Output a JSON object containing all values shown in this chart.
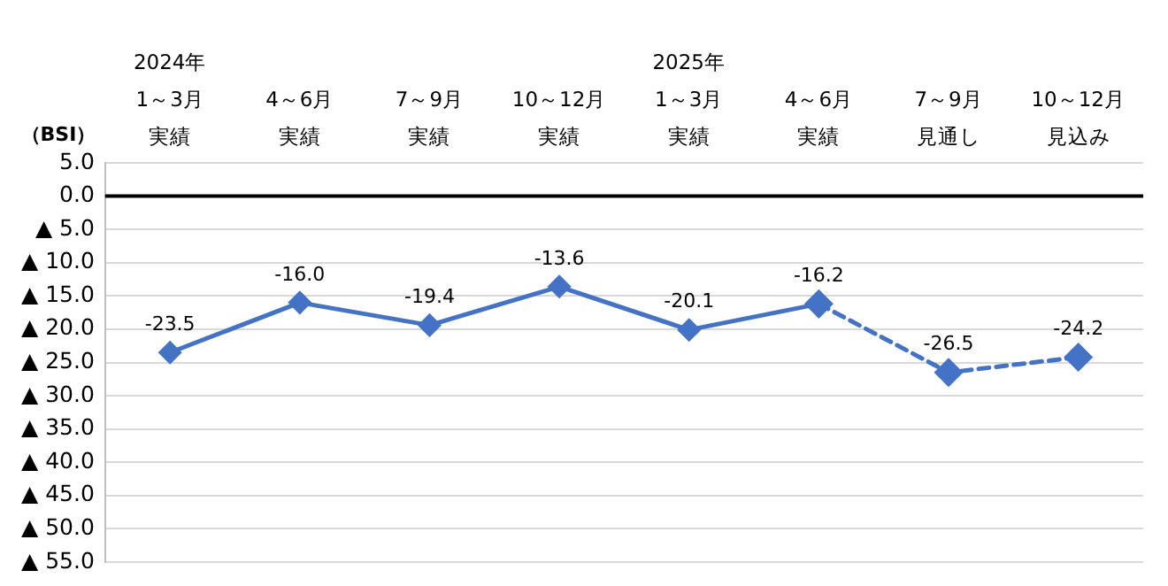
{
  "chart_data": {
    "type": "line",
    "ylabel": "（BSI）",
    "categories": [
      "2024年1～3月実績",
      "4～6月実績",
      "7～9月実績",
      "10～12月実績",
      "2025年1～3月実績",
      "4～6月実績",
      "7～9月見通し",
      "10～12月見込み"
    ],
    "series": [
      {
        "color": "#4472c4",
        "values": [
          -23.5,
          -16.0,
          -19.4,
          -13.6,
          -20.1,
          -16.2,
          null,
          null
        ],
        "value_labels": [
          "-23.5",
          "-16.0",
          "-19.4",
          "-13.6",
          "-20.1",
          "-16.2",
          null,
          null
        ],
        "line_style": "solid"
      },
      {
        "color": "#4472c4",
        "values": [
          null,
          null,
          null,
          null,
          null,
          -16.2,
          -26.5,
          -24.2
        ],
        "value_labels": [
          null,
          null,
          null,
          null,
          null,
          null,
          "-26.5",
          "-24.2"
        ],
        "line_style": "dashed"
      }
    ],
    "ylim": [
      -55,
      5
    ],
    "yticks": [
      {
        "value": 5,
        "label": "5.0"
      },
      {
        "value": 0,
        "label": "0.0"
      },
      {
        "value": -5,
        "label": "▲ 5.0"
      },
      {
        "value": -10,
        "label": "▲ 10.0"
      },
      {
        "value": -15,
        "label": "▲ 15.0"
      },
      {
        "value": -20,
        "label": "▲ 20.0"
      },
      {
        "value": -25,
        "label": "▲ 25.0"
      },
      {
        "value": -30,
        "label": "▲ 30.0"
      },
      {
        "value": -35,
        "label": "▲ 35.0"
      },
      {
        "value": -40,
        "label": "▲ 40.0"
      },
      {
        "value": -45,
        "label": "▲ 45.0"
      },
      {
        "value": -50,
        "label": "▲ 50.0"
      },
      {
        "value": -55,
        "label": "▲ 55.0"
      }
    ],
    "ref_lines": [
      {
        "axis": "y",
        "value": 0,
        "color": "#000000"
      }
    ],
    "grid": "y",
    "legend": false,
    "marker": "diamond"
  }
}
